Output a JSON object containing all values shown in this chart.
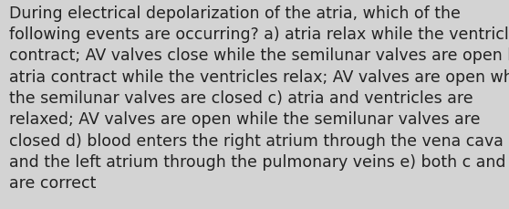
{
  "lines": [
    "During electrical depolarization of the atria, which of the",
    "following events are occurring? a) atria relax while the ventricles",
    "contract; AV valves close while the semilunar valves are open b)",
    "atria contract while the ventricles relax; AV valves are open while",
    "the semilunar valves are closed c) atria and ventricles are",
    "relaxed; AV valves are open while the semilunar valves are",
    "closed d) blood enters the right atrium through the vena cava",
    "and the left atrium through the pulmonary veins e) both c and d",
    "are correct"
  ],
  "background_color": "#d3d3d3",
  "text_color": "#222222",
  "font_size": 12.5,
  "fig_width": 5.58,
  "fig_height": 2.3,
  "dpi": 100
}
